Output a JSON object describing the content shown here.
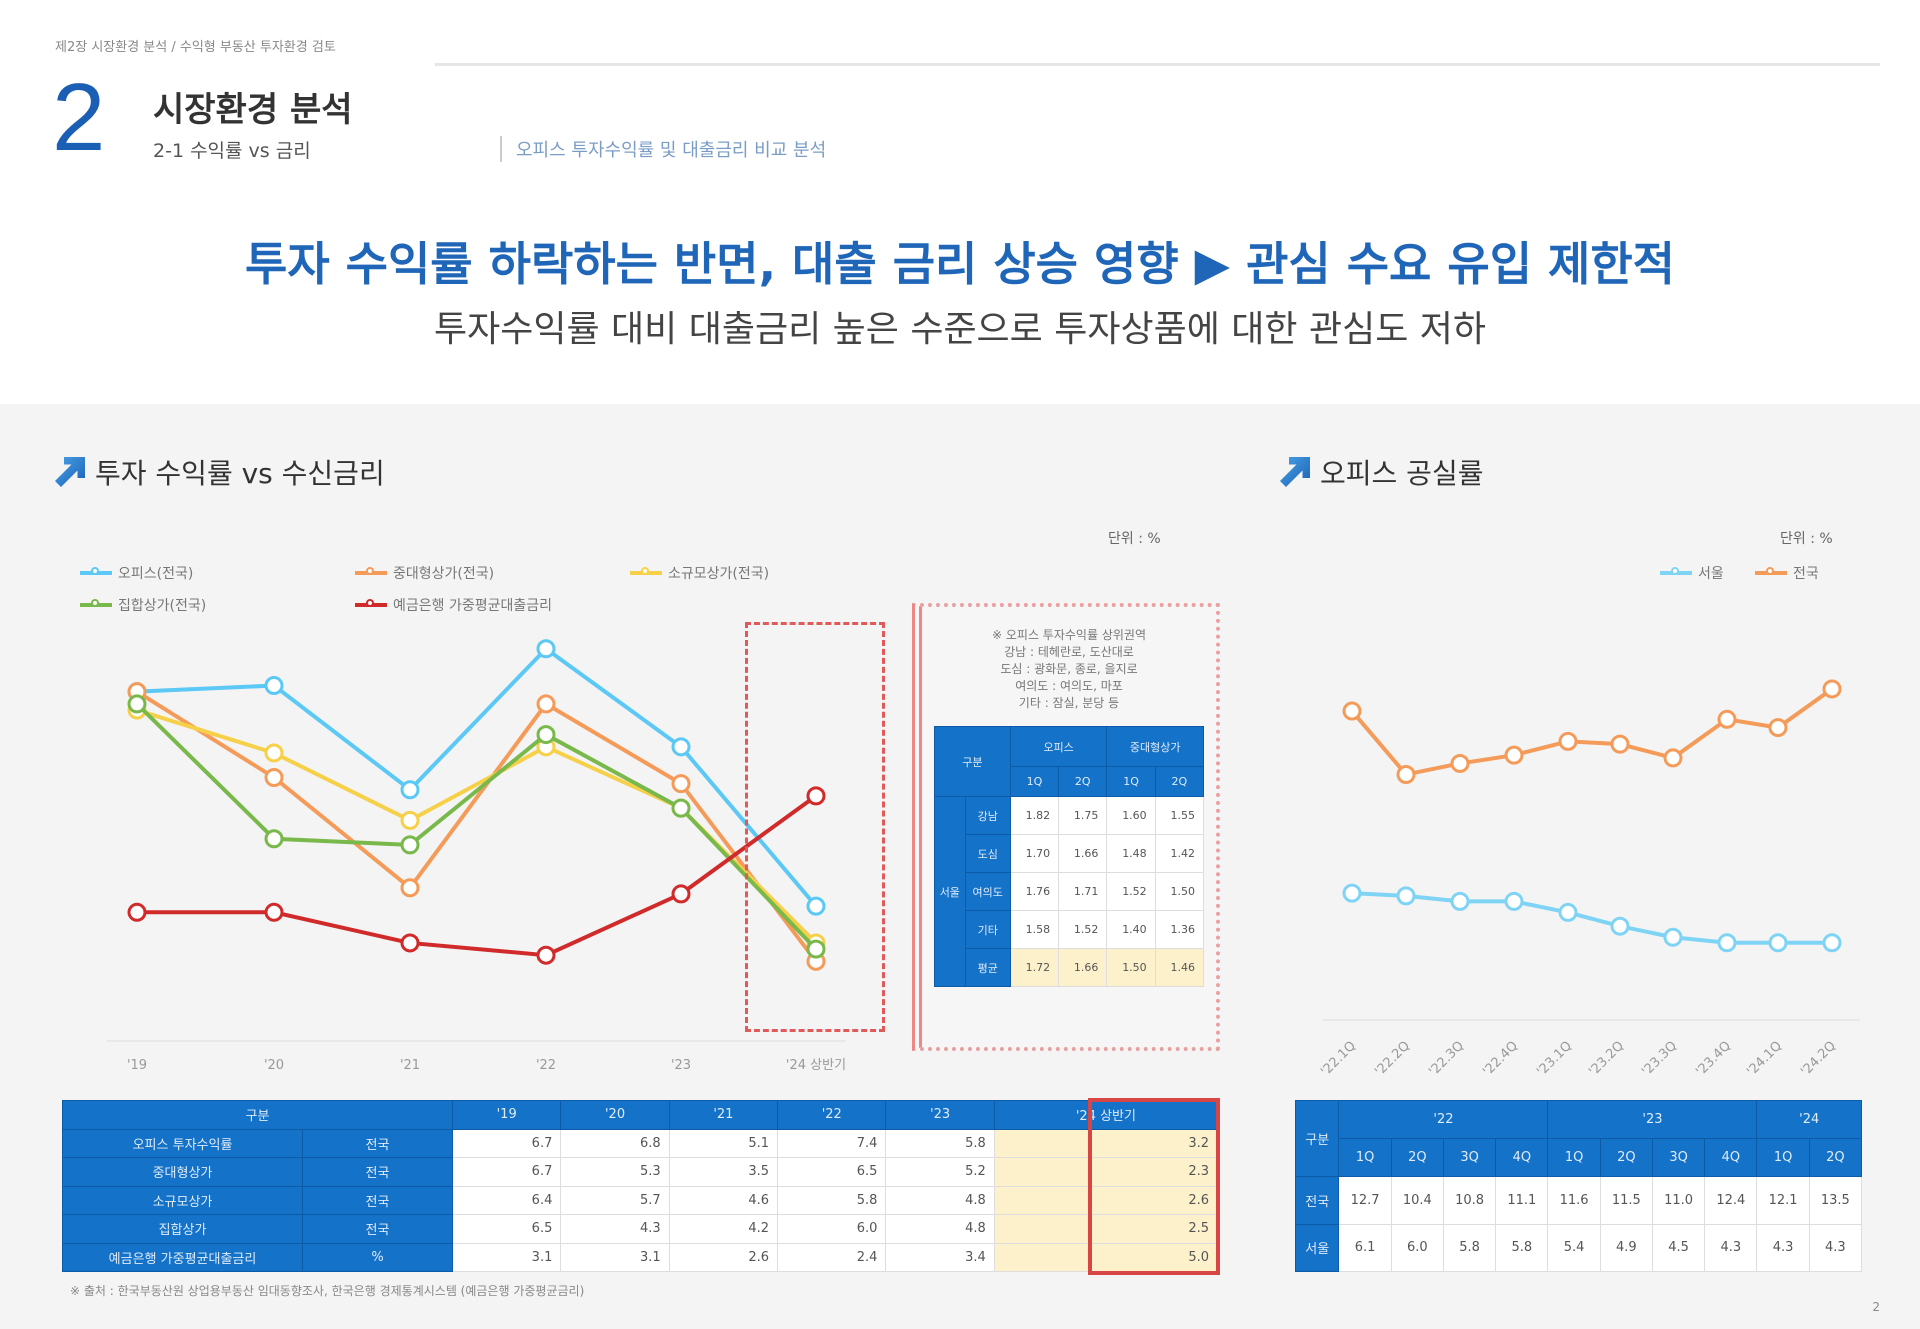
{
  "header": {
    "crumb": "제2장 시장환경 분석 / 수익형 부동산 투자환경 검토",
    "section_number": "2",
    "section_title": "시장환경 분석",
    "subsection": "2-1 수익률 vs 금리",
    "subsection_note": "오피스 투자수익률 및 대출금리 비교 분석"
  },
  "headline": "투자 수익률 하락하는 반면, 대출 금리 상승 영향 ▶ 관심 수요 유입 제한적",
  "subheadline": "투자수익률 대비 대출금리 높은 수준으로 투자상품에 대한 관심도 저하",
  "colors": {
    "accent": "#1f66b8",
    "table_header": "#1572c9",
    "highlight": "#fdf1cc",
    "dash_box": "#e05a5a"
  },
  "left": {
    "title": "투자 수익률 vs 수신금리",
    "unit": "단위 : %",
    "inset": {
      "text": [
        "※ 오피스 투자수익률 상위권역",
        "강남 : 테헤란로, 도산대로",
        "도심 : 광화문, 종로, 을지로",
        "여의도 : 여의도, 마포",
        "기타 : 잠실, 분당 등"
      ],
      "head": [
        "구분",
        "오피스",
        "중대형상가"
      ],
      "sub": [
        "1Q",
        "2Q",
        "1Q",
        "2Q"
      ],
      "group": "서울",
      "rows": [
        {
          "label": "강남",
          "values": [
            "1.82",
            "1.75",
            "1.60",
            "1.55"
          ]
        },
        {
          "label": "도심",
          "values": [
            "1.70",
            "1.66",
            "1.48",
            "1.42"
          ]
        },
        {
          "label": "여의도",
          "values": [
            "1.76",
            "1.71",
            "1.52",
            "1.50"
          ]
        },
        {
          "label": "기타",
          "values": [
            "1.58",
            "1.52",
            "1.40",
            "1.36"
          ]
        },
        {
          "label": "평균",
          "values": [
            "1.72",
            "1.66",
            "1.50",
            "1.46"
          ]
        }
      ]
    },
    "table": {
      "head": [
        "구분",
        "'19",
        "'20",
        "'21",
        "'22",
        "'23",
        "'24 상반기"
      ],
      "rows": [
        {
          "label": "오피스 투자수익률",
          "unit": "전국",
          "values": [
            "6.7",
            "6.8",
            "5.1",
            "7.4",
            "5.8",
            "3.2"
          ]
        },
        {
          "label": "중대형상가",
          "unit": "전국",
          "values": [
            "6.7",
            "5.3",
            "3.5",
            "6.5",
            "5.2",
            "2.3"
          ]
        },
        {
          "label": "소규모상가",
          "unit": "전국",
          "values": [
            "6.4",
            "5.7",
            "4.6",
            "5.8",
            "4.8",
            "2.6"
          ]
        },
        {
          "label": "집합상가",
          "unit": "전국",
          "values": [
            "6.5",
            "4.3",
            "4.2",
            "6.0",
            "4.8",
            "2.5"
          ]
        },
        {
          "label": "예금은행 가중평균대출금리",
          "unit": "%",
          "values": [
            "3.1",
            "3.1",
            "2.6",
            "2.4",
            "3.4",
            "5.0"
          ]
        }
      ]
    }
  },
  "right": {
    "title": "오피스 공실률",
    "unit": "단위 : %",
    "table": {
      "head": "구분",
      "years": [
        "'22",
        "'23",
        "'24"
      ],
      "quarters": [
        "1Q",
        "2Q",
        "3Q",
        "4Q",
        "1Q",
        "2Q",
        "3Q",
        "4Q",
        "1Q",
        "2Q"
      ],
      "rows": [
        {
          "label": "전국",
          "values": [
            "12.7",
            "10.4",
            "10.8",
            "11.1",
            "11.6",
            "11.5",
            "11.0",
            "12.4",
            "12.1",
            "13.5"
          ]
        },
        {
          "label": "서울",
          "values": [
            "6.1",
            "6.0",
            "5.8",
            "5.8",
            "5.4",
            "4.9",
            "4.5",
            "4.3",
            "4.3",
            "4.3"
          ]
        }
      ]
    }
  },
  "note": "※ 출처 : 한국부동산원 상업용부동산 임대동향조사, 한국은행 경제통계시스템 (예금은행 가중평균금리)",
  "page": "2",
  "chart_data": [
    {
      "type": "line",
      "title": "투자 수익률 vs 수신금리",
      "ylabel": "%",
      "ylim": [
        1,
        8
      ],
      "categories": [
        "'19",
        "'20",
        "'21",
        "'22",
        "'23",
        "'24 상반기"
      ],
      "series": [
        {
          "name": "오피스(전국)",
          "color": "#5bc8f5",
          "values": [
            6.7,
            6.8,
            5.1,
            7.4,
            5.8,
            3.2
          ]
        },
        {
          "name": "중대형상가(전국)",
          "color": "#f59b5a",
          "values": [
            6.7,
            5.3,
            3.5,
            6.5,
            5.2,
            2.3
          ]
        },
        {
          "name": "소규모상가(전국)",
          "color": "#f7d04a",
          "values": [
            6.4,
            5.7,
            4.6,
            5.8,
            4.8,
            2.6
          ]
        },
        {
          "name": "집합상가(전국)",
          "color": "#79b84a",
          "values": [
            6.5,
            4.3,
            4.2,
            6.0,
            4.8,
            2.5
          ]
        },
        {
          "name": "예금은행 가중평균대출금리",
          "color": "#d12a2a",
          "values": [
            3.1,
            3.1,
            2.6,
            2.4,
            3.4,
            5.0
          ]
        }
      ],
      "legend": "top-left"
    },
    {
      "type": "line",
      "title": "오피스 공실률",
      "ylabel": "%",
      "ylim": [
        1.5,
        16
      ],
      "categories": [
        "'22.1Q",
        "'22.2Q",
        "'22.3Q",
        "'22.4Q",
        "'23.1Q",
        "'23.2Q",
        "'23.3Q",
        "'23.4Q",
        "'24.1Q",
        "'24.2Q"
      ],
      "series": [
        {
          "name": "서울",
          "color": "#7fd4f5",
          "values": [
            6.1,
            6.0,
            5.8,
            5.8,
            5.4,
            4.9,
            4.5,
            4.3,
            4.3,
            4.3
          ]
        },
        {
          "name": "전국",
          "color": "#f59b5a",
          "values": [
            12.7,
            10.4,
            10.8,
            11.1,
            11.6,
            11.5,
            11.0,
            12.4,
            12.1,
            13.5
          ]
        }
      ],
      "legend": "top-right"
    }
  ]
}
